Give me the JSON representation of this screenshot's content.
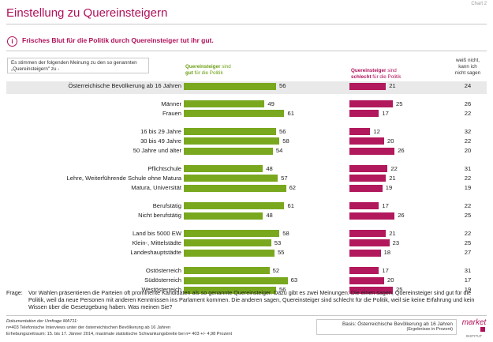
{
  "page": {
    "chart_label": "Chart 2",
    "title": "Einstellung zu Quereinsteigern",
    "headline": "Frisches Blut für die Politik durch Quereinsteiger tut ihr gut.",
    "question_box": "Es stimmen der folgenden Meinung zu den so genannten „Quereinsteigern\" zu -",
    "col_positive_a": "Quereinsteiger",
    "col_positive_b": " sind",
    "col_positive_c": "gut",
    "col_positive_d": " für die Politik",
    "col_negative_a": "Quereinsteiger",
    "col_negative_b": " sind",
    "col_negative_c": "schlecht",
    "col_negative_d": " für die Politik",
    "col_dontknow_1": "weiß nicht,",
    "col_dontknow_2": "kann ich",
    "col_dontknow_3": "nicht sagen",
    "frage_label": "Frage:",
    "frage_text": "Vor Wahlen präsentieren die Parteien oft prominente Kandidaten als so genannte Quereinsteiger. Dazu gibt es zwei Meinungen: Die einen sagen, Quereinsteiger sind gut für die Politik, weil da neue Personen mit anderen Kenntnissen ins Parlament kommen. Die anderen sagen, Quereinsteiger sind schlecht für die Politik, weil sie keine Erfahrung und kein Wissen über die Gesetzgebung haben. Was meinen Sie?",
    "doc_label": "Dokumentation der Umfrage MA711:",
    "doc_line1": "n=403 Telefonische Interviews unter der österreichischen Bevölkerung ab 16 Jahren",
    "doc_line2": "Erhebungszeitraum: 15. bis 17. Jänner 2014, maximale statistische Schwankungsbreite  bei n= 403 +/- 4,98 Prozent",
    "basis": "Basis: Österreichische Bevölkerung ab 16 Jahren",
    "basis_sub": "(Ergebnisse in Prozent)",
    "logo_text": "market",
    "logo_sub": "INSTITUT"
  },
  "chart_data": {
    "type": "bar",
    "colors": {
      "positive": "#79a81f",
      "negative": "#b2185c",
      "accent": "#b0105a",
      "band": "#e9e9e9"
    },
    "series": [
      {
        "name": "Quereinsteiger sind gut für die Politik",
        "values": [
          56,
          49,
          61,
          56,
          58,
          54,
          48,
          57,
          62,
          61,
          48,
          58,
          53,
          55,
          52,
          63,
          56
        ]
      },
      {
        "name": "Quereinsteiger sind schlecht für die Politik",
        "values": [
          21,
          25,
          17,
          12,
          20,
          26,
          22,
          21,
          19,
          17,
          26,
          21,
          23,
          18,
          17,
          20,
          25
        ]
      },
      {
        "name": "weiß nicht, kann ich nicht sagen",
        "values": [
          24,
          26,
          22,
          32,
          22,
          20,
          31,
          22,
          19,
          22,
          25,
          22,
          25,
          27,
          31,
          17,
          19
        ]
      }
    ],
    "categories": [
      "Österreichische Bevölkerung ab 16 Jahren",
      "Männer",
      "Frauen",
      "16 bis 29 Jahre",
      "30 bis 49 Jahre",
      "50 Jahre und älter",
      "Pflichtschule",
      "Lehre, Weiterführende Schule ohne Matura",
      "Matura, Universität",
      "Berufstätig",
      "Nicht berufstätig",
      "Land bis 5000 EW",
      "Klein-, Mittelstädte",
      "Landeshauptstädte",
      "Ostösterreich",
      "Südösterreich",
      "Westösterreich"
    ],
    "groups": [
      [
        0
      ],
      [
        1,
        2
      ],
      [
        3,
        4,
        5
      ],
      [
        6,
        7,
        8
      ],
      [
        9,
        10
      ],
      [
        11,
        12,
        13
      ],
      [
        14,
        15,
        16
      ]
    ]
  }
}
